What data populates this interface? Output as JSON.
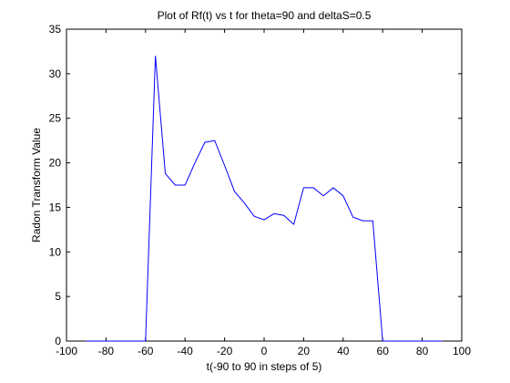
{
  "chart_data": {
    "type": "line",
    "title": "Plot of Rf(t) vs t for theta=90 and deltaS=0.5",
    "xlabel": "t(-90 to 90 in steps of 5)",
    "ylabel": "Radon Transform Value",
    "xlim": [
      -100,
      100
    ],
    "ylim": [
      0,
      35
    ],
    "xticks": [
      -100,
      -80,
      -60,
      -40,
      -20,
      0,
      20,
      40,
      60,
      80,
      100
    ],
    "yticks": [
      0,
      5,
      10,
      15,
      20,
      25,
      30,
      35
    ],
    "grid": false,
    "series": [
      {
        "color": "#0000ff",
        "x": [
          -90,
          -85,
          -80,
          -75,
          -70,
          -65,
          -60,
          -55,
          -50,
          -45,
          -40,
          -35,
          -30,
          -25,
          -20,
          -15,
          -10,
          -5,
          0,
          5,
          10,
          15,
          20,
          25,
          30,
          35,
          40,
          45,
          50,
          55,
          60,
          65,
          70,
          75,
          80,
          85,
          90
        ],
        "y": [
          0,
          0,
          0,
          0,
          0,
          0,
          0,
          32,
          18.8,
          17.5,
          17.5,
          20.0,
          22.3,
          22.5,
          19.7,
          16.8,
          15.5,
          14.0,
          13.6,
          14.3,
          14.1,
          13.1,
          17.2,
          17.2,
          16.3,
          17.2,
          16.3,
          13.9,
          13.5,
          13.5,
          0,
          0,
          0,
          0,
          0,
          0,
          0
        ]
      }
    ]
  }
}
